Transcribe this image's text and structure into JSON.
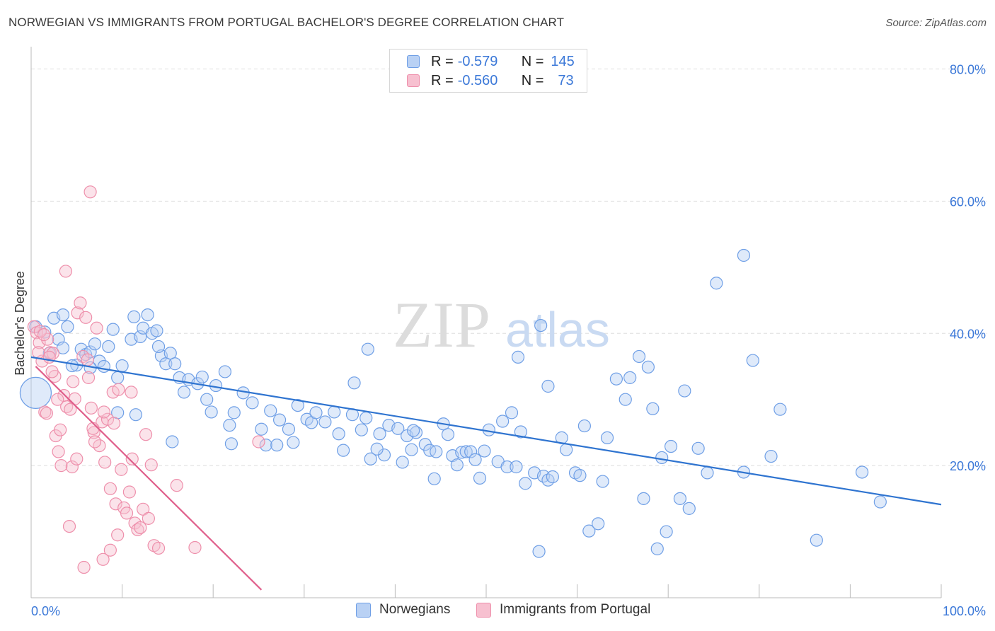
{
  "header": {
    "title": "NORWEGIAN VS IMMIGRANTS FROM PORTUGAL BACHELOR'S DEGREE CORRELATION CHART",
    "source": "Source: ZipAtlas.com"
  },
  "watermark": {
    "zip": "ZIP",
    "atlas": "atlas"
  },
  "legend": {
    "rows": [
      {
        "r_label": "R = ",
        "r_value": "-0.579",
        "n_label": "N = ",
        "n_value": "145"
      },
      {
        "r_label": "R = ",
        "r_value": "-0.560",
        "n_label": "N = ",
        "n_value": "73"
      }
    ]
  },
  "chart_data": {
    "type": "scatter",
    "title": "NORWEGIAN VS IMMIGRANTS FROM PORTUGAL BACHELOR'S DEGREE CORRELATION CHART",
    "xlabel": "",
    "ylabel": "Bachelor's Degree",
    "xlim": [
      0,
      100
    ],
    "ylim": [
      0,
      82
    ],
    "x_tick_labels": [
      "0.0%",
      "100.0%"
    ],
    "y_ticks": [
      20,
      40,
      60,
      80
    ],
    "y_tick_labels": [
      "20.0%",
      "40.0%",
      "60.0%",
      "80.0%"
    ],
    "grid": true,
    "legend_position": "top-center",
    "series": [
      {
        "name": "Norwegians",
        "color": "#6f9fe6",
        "fill": "#b9d1f4",
        "trend_color": "#2f74d0",
        "r": -0.579,
        "n": 145,
        "trend": {
          "x": [
            0,
            100
          ],
          "y": [
            36.4,
            14.1
          ]
        },
        "big_point": [
          0.5,
          31.0
        ],
        "points": [
          [
            0.5,
            41.0
          ],
          [
            1.5,
            40.2
          ],
          [
            2.5,
            42.3
          ],
          [
            3.0,
            39.1
          ],
          [
            3.5,
            37.8
          ],
          [
            4.0,
            41.0
          ],
          [
            5.0,
            35.2
          ],
          [
            5.5,
            37.6
          ],
          [
            6.0,
            36.8
          ],
          [
            6.5,
            37.2
          ],
          [
            7.0,
            38.4
          ],
          [
            7.5,
            35.8
          ],
          [
            8.0,
            35.0
          ],
          [
            8.5,
            38.0
          ],
          [
            9.0,
            40.6
          ],
          [
            9.5,
            33.3
          ],
          [
            10.0,
            35.1
          ],
          [
            11.0,
            39.1
          ],
          [
            11.3,
            42.5
          ],
          [
            12.0,
            39.5
          ],
          [
            12.3,
            40.8
          ],
          [
            12.8,
            42.8
          ],
          [
            13.3,
            40.0
          ],
          [
            13.8,
            40.4
          ],
          [
            14.3,
            36.6
          ],
          [
            14.8,
            35.4
          ],
          [
            15.3,
            37.0
          ],
          [
            15.8,
            35.4
          ],
          [
            16.3,
            33.3
          ],
          [
            16.8,
            31.1
          ],
          [
            17.3,
            33.0
          ],
          [
            18.3,
            32.4
          ],
          [
            18.8,
            33.4
          ],
          [
            19.3,
            30.0
          ],
          [
            19.8,
            28.1
          ],
          [
            20.3,
            32.1
          ],
          [
            21.3,
            34.2
          ],
          [
            21.8,
            26.1
          ],
          [
            22.3,
            28.0
          ],
          [
            23.3,
            31.0
          ],
          [
            24.3,
            29.5
          ],
          [
            25.3,
            25.5
          ],
          [
            25.8,
            23.1
          ],
          [
            26.3,
            28.3
          ],
          [
            27.3,
            26.9
          ],
          [
            28.3,
            25.5
          ],
          [
            28.8,
            23.5
          ],
          [
            29.3,
            29.1
          ],
          [
            30.3,
            27.0
          ],
          [
            30.8,
            26.5
          ],
          [
            31.3,
            28.0
          ],
          [
            32.3,
            26.6
          ],
          [
            33.3,
            28.1
          ],
          [
            33.8,
            24.8
          ],
          [
            34.3,
            22.3
          ],
          [
            35.3,
            27.7
          ],
          [
            36.3,
            25.4
          ],
          [
            36.8,
            27.2
          ],
          [
            37.3,
            21.0
          ],
          [
            38.3,
            24.8
          ],
          [
            38.8,
            21.6
          ],
          [
            39.3,
            26.1
          ],
          [
            40.3,
            25.6
          ],
          [
            40.8,
            20.5
          ],
          [
            41.3,
            24.5
          ],
          [
            41.8,
            22.4
          ],
          [
            42.3,
            25.0
          ],
          [
            43.3,
            23.2
          ],
          [
            43.8,
            22.3
          ],
          [
            44.3,
            18.0
          ],
          [
            45.3,
            26.3
          ],
          [
            45.8,
            24.7
          ],
          [
            46.3,
            21.5
          ],
          [
            46.8,
            20.1
          ],
          [
            47.3,
            22.0
          ],
          [
            47.8,
            22.1
          ],
          [
            48.3,
            22.1
          ],
          [
            48.8,
            20.9
          ],
          [
            49.3,
            18.1
          ],
          [
            49.8,
            22.2
          ],
          [
            50.3,
            25.4
          ],
          [
            51.3,
            20.6
          ],
          [
            51.8,
            26.7
          ],
          [
            52.3,
            19.8
          ],
          [
            52.8,
            28.0
          ],
          [
            53.3,
            19.8
          ],
          [
            53.8,
            25.1
          ],
          [
            54.3,
            17.3
          ],
          [
            55.3,
            18.9
          ],
          [
            55.8,
            7.0
          ],
          [
            56.3,
            18.4
          ],
          [
            56.8,
            17.8
          ],
          [
            57.3,
            18.3
          ],
          [
            58.3,
            24.2
          ],
          [
            58.8,
            22.4
          ],
          [
            59.8,
            18.9
          ],
          [
            60.3,
            18.5
          ],
          [
            61.3,
            10.1
          ],
          [
            62.3,
            11.2
          ],
          [
            62.8,
            17.6
          ],
          [
            63.3,
            24.2
          ],
          [
            64.3,
            33.1
          ],
          [
            65.3,
            30.0
          ],
          [
            65.8,
            33.3
          ],
          [
            66.8,
            36.5
          ],
          [
            67.3,
            15.0
          ],
          [
            67.8,
            34.9
          ],
          [
            68.3,
            28.6
          ],
          [
            68.8,
            7.4
          ],
          [
            69.3,
            21.2
          ],
          [
            69.8,
            10.0
          ],
          [
            70.3,
            22.9
          ],
          [
            71.3,
            15.0
          ],
          [
            71.8,
            31.3
          ],
          [
            72.3,
            13.5
          ],
          [
            73.3,
            22.6
          ],
          [
            74.3,
            18.9
          ],
          [
            75.3,
            47.6
          ],
          [
            78.3,
            19.0
          ],
          [
            78.3,
            51.8
          ],
          [
            79.3,
            35.9
          ],
          [
            81.3,
            21.4
          ],
          [
            82.3,
            28.5
          ],
          [
            86.3,
            8.7
          ],
          [
            91.3,
            19.0
          ],
          [
            93.3,
            14.5
          ],
          [
            11.5,
            27.7
          ],
          [
            15.5,
            23.6
          ],
          [
            22.0,
            23.3
          ],
          [
            27.0,
            23.1
          ],
          [
            35.5,
            32.5
          ],
          [
            38.0,
            22.5
          ],
          [
            44.5,
            22.1
          ],
          [
            37.0,
            37.6
          ],
          [
            4.5,
            35.1
          ],
          [
            53.5,
            36.4
          ],
          [
            56.0,
            41.2
          ],
          [
            42.0,
            25.3
          ],
          [
            56.8,
            32.0
          ],
          [
            60.8,
            26.0
          ],
          [
            2.0,
            37.0
          ],
          [
            3.5,
            42.8
          ],
          [
            6.5,
            34.8
          ],
          [
            9.5,
            28.0
          ],
          [
            14.0,
            38.0
          ]
        ]
      },
      {
        "name": "Immigrants from Portugal",
        "color": "#ee8fab",
        "fill": "#f7c0d0",
        "trend_color": "#e0608c",
        "r": -0.56,
        "n": 73,
        "trend": {
          "x": [
            0.5,
            25.3
          ],
          "y": [
            35.0,
            1.2
          ]
        },
        "points": [
          [
            0.3,
            41.0
          ],
          [
            0.6,
            40.1
          ],
          [
            0.9,
            38.6
          ],
          [
            1.2,
            35.8
          ],
          [
            1.5,
            28.1
          ],
          [
            1.8,
            39.1
          ],
          [
            2.1,
            37.1
          ],
          [
            2.4,
            37.0
          ],
          [
            2.7,
            24.5
          ],
          [
            3.0,
            22.1
          ],
          [
            3.3,
            20.0
          ],
          [
            3.6,
            30.6
          ],
          [
            3.9,
            28.9
          ],
          [
            4.2,
            10.8
          ],
          [
            4.5,
            19.8
          ],
          [
            4.8,
            30.1
          ],
          [
            5.1,
            43.1
          ],
          [
            5.4,
            44.6
          ],
          [
            5.7,
            36.5
          ],
          [
            6.0,
            42.4
          ],
          [
            6.3,
            33.3
          ],
          [
            6.6,
            28.7
          ],
          [
            6.9,
            25.0
          ],
          [
            7.2,
            40.8
          ],
          [
            7.5,
            23.0
          ],
          [
            7.8,
            26.6
          ],
          [
            8.1,
            20.5
          ],
          [
            8.4,
            27.0
          ],
          [
            8.7,
            16.5
          ],
          [
            9.0,
            31.1
          ],
          [
            9.3,
            14.2
          ],
          [
            9.6,
            31.5
          ],
          [
            9.9,
            19.4
          ],
          [
            10.2,
            13.6
          ],
          [
            10.5,
            12.8
          ],
          [
            10.8,
            16.0
          ],
          [
            11.1,
            21.0
          ],
          [
            11.4,
            11.3
          ],
          [
            11.7,
            10.3
          ],
          [
            12.0,
            10.6
          ],
          [
            12.3,
            13.4
          ],
          [
            12.6,
            24.7
          ],
          [
            12.9,
            12.0
          ],
          [
            13.2,
            20.1
          ],
          [
            13.5,
            7.9
          ],
          [
            14.0,
            7.5
          ],
          [
            16.0,
            17.0
          ],
          [
            18.0,
            7.6
          ],
          [
            25.0,
            23.6
          ],
          [
            6.5,
            61.4
          ],
          [
            3.8,
            49.4
          ],
          [
            2.0,
            36.4
          ],
          [
            1.0,
            40.3
          ],
          [
            2.6,
            33.5
          ],
          [
            5.0,
            21.0
          ],
          [
            7.0,
            23.6
          ],
          [
            8.0,
            28.1
          ],
          [
            3.2,
            25.4
          ],
          [
            4.3,
            28.5
          ],
          [
            1.7,
            27.9
          ],
          [
            2.9,
            30.0
          ],
          [
            6.8,
            25.6
          ],
          [
            9.5,
            9.5
          ],
          [
            8.7,
            7.2
          ],
          [
            7.9,
            5.8
          ],
          [
            5.8,
            4.6
          ],
          [
            0.8,
            37.1
          ],
          [
            1.4,
            39.8
          ],
          [
            2.3,
            34.2
          ],
          [
            4.6,
            32.7
          ],
          [
            6.2,
            36.0
          ],
          [
            9.1,
            26.4
          ],
          [
            11.0,
            31.1
          ]
        ]
      }
    ]
  }
}
